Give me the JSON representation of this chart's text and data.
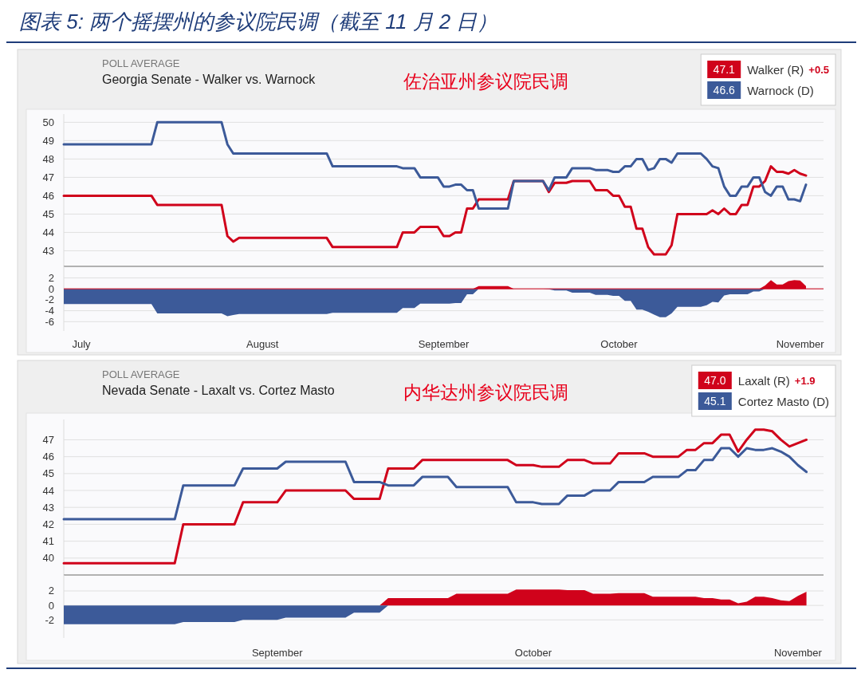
{
  "chart_data": [
    {
      "type": "line",
      "title": "Georgia Senate - Walker vs. Warnock",
      "subtitle": "佐治亚州参议院民调",
      "annotations": [
        "图表 5: 两个摇摆州的参议院民调（截至 11 月 2 日）",
        "POLL AVERAGE",
        "47.1",
        "+0.5",
        "46.6"
      ],
      "x": [
        "--06-28",
        "--07-13",
        "--07-14",
        "--07-25",
        "--07-26",
        "--07-27",
        "--07-28",
        "--08-12",
        "--08-13",
        "--08-24",
        "--08-25",
        "--08-27",
        "--08-28",
        "--08-29",
        "--08-31",
        "--09-01",
        "--09-02",
        "--09-03",
        "--09-04",
        "--09-05",
        "--09-06",
        "--09-07",
        "--09-12",
        "--09-13",
        "--09-18",
        "--09-19",
        "--09-20",
        "--09-22",
        "--09-23",
        "--09-26",
        "--09-27",
        "--09-29",
        "--09-30",
        "--10-01",
        "--10-02",
        "--10-03",
        "--10-04",
        "--10-05",
        "--10-06",
        "--10-07",
        "--10-08",
        "--10-09",
        "--10-10",
        "--10-11",
        "--10-15",
        "--10-16",
        "--10-17",
        "--10-18",
        "--10-19",
        "--10-20",
        "--10-21",
        "--10-22",
        "--10-23",
        "--10-24",
        "--10-25",
        "--10-26",
        "--10-27",
        "--10-28",
        "--10-29",
        "--10-30",
        "--10-31",
        "--11-01",
        "--11-02"
      ],
      "series": [
        {
          "name": "Walker (R)",
          "color": "#d0021b",
          "values": [
            46.0,
            46.0,
            45.5,
            45.5,
            43.8,
            43.5,
            43.7,
            43.7,
            43.2,
            43.2,
            44.0,
            44.0,
            44.3,
            44.3,
            44.3,
            43.8,
            43.8,
            44.0,
            44.0,
            45.3,
            45.3,
            45.8,
            45.8,
            46.8,
            46.8,
            46.2,
            46.7,
            46.7,
            46.8,
            46.8,
            46.3,
            46.3,
            46.0,
            46.0,
            45.4,
            45.4,
            44.2,
            44.2,
            43.2,
            42.8,
            42.8,
            42.8,
            43.3,
            45.0,
            45.0,
            45.0,
            45.2,
            45.0,
            45.3,
            45.0,
            45.0,
            45.5,
            45.5,
            46.5,
            46.5,
            46.8,
            47.6,
            47.3,
            47.3,
            47.2,
            47.4,
            47.2,
            47.1
          ]
        },
        {
          "name": "Warnock (D)",
          "color": "#3c5a99",
          "values": [
            48.8,
            48.8,
            50.0,
            50.0,
            48.8,
            48.3,
            48.3,
            48.3,
            47.6,
            47.6,
            47.5,
            47.5,
            47.0,
            47.0,
            47.0,
            46.5,
            46.5,
            46.6,
            46.6,
            46.3,
            46.3,
            45.3,
            45.3,
            46.8,
            46.8,
            46.3,
            47.0,
            47.0,
            47.5,
            47.5,
            47.4,
            47.4,
            47.3,
            47.3,
            47.6,
            47.6,
            48.0,
            48.0,
            47.4,
            47.5,
            48.0,
            48.0,
            47.8,
            48.3,
            48.3,
            48.0,
            47.6,
            47.5,
            46.5,
            46.0,
            46.0,
            46.5,
            46.5,
            47.0,
            47.0,
            46.2,
            46.0,
            46.5,
            46.5,
            45.8,
            45.8,
            45.7,
            46.6
          ]
        }
      ],
      "xlim": [
        "--06-28",
        "--11-05"
      ],
      "ylim": [
        42.15,
        50.45
      ],
      "yticks": [
        43,
        44,
        45,
        46,
        47,
        48,
        49,
        50
      ],
      "grid": "y",
      "legend": "top right",
      "tick_labels": "y"
    },
    {
      "type": "area",
      "x": [
        "--06-28",
        "--07-13",
        "--07-14",
        "--07-25",
        "--07-26",
        "--07-27",
        "--07-28",
        "--08-12",
        "--08-13",
        "--08-24",
        "--08-25",
        "--08-27",
        "--08-28",
        "--08-29",
        "--08-31",
        "--09-01",
        "--09-02",
        "--09-03",
        "--09-04",
        "--09-05",
        "--09-06",
        "--09-07",
        "--09-12",
        "--09-13",
        "--09-18",
        "--09-19",
        "--09-20",
        "--09-22",
        "--09-23",
        "--09-26",
        "--09-27",
        "--09-29",
        "--09-30",
        "--10-01",
        "--10-02",
        "--10-03",
        "--10-04",
        "--10-05",
        "--10-06",
        "--10-07",
        "--10-08",
        "--10-09",
        "--10-10",
        "--10-11",
        "--10-15",
        "--10-16",
        "--10-17",
        "--10-18",
        "--10-19",
        "--10-20",
        "--10-21",
        "--10-22",
        "--10-23",
        "--10-24",
        "--10-25",
        "--10-26",
        "--10-27",
        "--10-28",
        "--10-29",
        "--10-30",
        "--10-31",
        "--11-01",
        "--11-02"
      ],
      "series": [
        {
          "color": "#d0021b",
          "values": [
            0,
            0,
            0,
            0,
            0,
            0,
            0,
            0,
            0,
            0,
            0,
            0,
            0,
            0,
            0,
            0,
            0,
            0,
            0,
            0,
            0,
            0.5,
            0.5,
            0,
            0,
            0,
            0,
            0,
            0,
            0,
            0,
            0,
            0,
            0,
            0,
            0,
            0,
            0,
            0,
            0,
            0,
            0,
            0,
            0,
            0,
            0,
            0,
            0,
            0,
            0,
            0,
            0,
            0,
            0,
            0,
            0.6,
            1.6,
            0.8,
            0.8,
            1.4,
            1.6,
            1.5,
            0.5
          ]
        },
        {
          "color": "#3c5a99",
          "values": [
            -2.8,
            -2.8,
            -4.5,
            -4.5,
            -5.0,
            -4.8,
            -4.6,
            -4.6,
            -4.4,
            -4.4,
            -3.5,
            -3.5,
            -2.7,
            -2.7,
            -2.7,
            -2.7,
            -2.7,
            -2.6,
            -2.6,
            -1.0,
            -1.0,
            0,
            0,
            0,
            0,
            -0.1,
            -0.3,
            -0.3,
            -0.7,
            -0.7,
            -1.1,
            -1.1,
            -1.3,
            -1.3,
            -2.2,
            -2.2,
            -3.8,
            -3.8,
            -4.2,
            -4.7,
            -5.2,
            -5.2,
            -4.5,
            -3.3,
            -3.3,
            -3.0,
            -2.4,
            -2.5,
            -1.2,
            -1.0,
            -1.0,
            -1.0,
            -1.0,
            -0.5,
            -0.5,
            0,
            0,
            0,
            0,
            0,
            0,
            0,
            0
          ]
        }
      ],
      "xlim": [
        "--06-28",
        "--11-05"
      ],
      "xticks": [
        {
          "value": "--07-01",
          "label": "July"
        },
        {
          "value": "--08-01",
          "label": "August"
        },
        {
          "value": "--09-01",
          "label": "September"
        },
        {
          "value": "--10-01",
          "label": "October"
        },
        {
          "value": "--11-01",
          "label": "November"
        }
      ],
      "ylim": [
        -7.7,
        4.1
      ],
      "yticks": [
        2,
        0,
        -2,
        -4,
        -6
      ],
      "grid": "y",
      "ref_lines": [
        {
          "axis": "y",
          "value": 0,
          "color": "#d0021b"
        }
      ]
    },
    {
      "type": "line",
      "title": "Nevada Senate - Laxalt vs. Cortez Masto",
      "subtitle": "内华达州参议院民调",
      "annotations": [
        "POLL AVERAGE",
        "47.0",
        "+1.9",
        "45.1"
      ],
      "x": [
        "--08-07",
        "--08-20",
        "--08-21",
        "--08-27",
        "--08-28",
        "--09-01",
        "--09-02",
        "--09-09",
        "--09-10",
        "--09-13",
        "--09-14",
        "--09-17",
        "--09-18",
        "--09-19",
        "--09-21",
        "--09-22",
        "--09-28",
        "--09-29",
        "--10-01",
        "--10-02",
        "--10-04",
        "--10-05",
        "--10-07",
        "--10-08",
        "--10-10",
        "--10-11",
        "--10-14",
        "--10-15",
        "--10-18",
        "--10-19",
        "--10-20",
        "--10-21",
        "--10-22",
        "--10-23",
        "--10-24",
        "--10-25",
        "--10-26",
        "--10-27",
        "--10-28",
        "--10-29",
        "--10-30",
        "--10-31",
        "--11-01",
        "--11-02"
      ],
      "series": [
        {
          "name": "Laxalt (R)",
          "color": "#d0021b",
          "values": [
            39.7,
            39.7,
            42.0,
            42.0,
            43.3,
            43.3,
            44.0,
            44.0,
            43.5,
            43.5,
            45.3,
            45.3,
            45.8,
            45.8,
            45.8,
            45.8,
            45.8,
            45.5,
            45.5,
            45.4,
            45.4,
            45.8,
            45.8,
            45.6,
            45.6,
            46.2,
            46.2,
            46.0,
            46.0,
            46.4,
            46.4,
            46.8,
            46.8,
            47.3,
            47.3,
            46.3,
            47.0,
            47.6,
            47.6,
            47.5,
            47.0,
            46.6,
            46.8,
            47.0
          ]
        },
        {
          "name": "Cortez Masto (D)",
          "color": "#3c5a99",
          "values": [
            42.3,
            42.3,
            44.3,
            44.3,
            45.3,
            45.3,
            45.7,
            45.7,
            44.5,
            44.5,
            44.3,
            44.3,
            44.8,
            44.8,
            44.8,
            44.2,
            44.2,
            43.3,
            43.3,
            43.2,
            43.2,
            43.7,
            43.7,
            44.0,
            44.0,
            44.5,
            44.5,
            44.8,
            44.8,
            45.2,
            45.2,
            45.8,
            45.8,
            46.5,
            46.5,
            46.0,
            46.5,
            46.4,
            46.4,
            46.5,
            46.3,
            46.0,
            45.5,
            45.1
          ]
        }
      ],
      "xlim": [
        "--08-07",
        "--11-04"
      ],
      "ylim": [
        39.0,
        48.2
      ],
      "yticks": [
        40,
        41,
        42,
        43,
        44,
        45,
        46,
        47
      ],
      "grid": "y",
      "legend": "top right",
      "tick_labels": "y"
    },
    {
      "type": "area",
      "x": [
        "--08-07",
        "--08-20",
        "--08-21",
        "--08-27",
        "--08-28",
        "--09-01",
        "--09-02",
        "--09-09",
        "--09-10",
        "--09-13",
        "--09-14",
        "--09-17",
        "--09-18",
        "--09-19",
        "--09-21",
        "--09-22",
        "--09-28",
        "--09-29",
        "--10-01",
        "--10-02",
        "--10-04",
        "--10-05",
        "--10-07",
        "--10-08",
        "--10-10",
        "--10-11",
        "--10-14",
        "--10-15",
        "--10-18",
        "--10-19",
        "--10-20",
        "--10-21",
        "--10-22",
        "--10-23",
        "--10-24",
        "--10-25",
        "--10-26",
        "--10-27",
        "--10-28",
        "--10-29",
        "--10-30",
        "--10-31",
        "--11-01",
        "--11-02"
      ],
      "series": [
        {
          "color": "#d0021b",
          "values": [
            0,
            0,
            0,
            0,
            0,
            0,
            0,
            0,
            0,
            0,
            1.0,
            1.0,
            1.0,
            1.0,
            1.0,
            1.6,
            1.6,
            2.2,
            2.2,
            2.2,
            2.2,
            2.1,
            2.1,
            1.6,
            1.6,
            1.7,
            1.7,
            1.2,
            1.2,
            1.2,
            1.2,
            1.0,
            1.0,
            0.8,
            0.8,
            0.3,
            0.5,
            1.2,
            1.2,
            1.0,
            0.7,
            0.6,
            1.3,
            1.9
          ]
        },
        {
          "color": "#3c5a99",
          "values": [
            -2.6,
            -2.6,
            -2.3,
            -2.3,
            -2.0,
            -2.0,
            -1.7,
            -1.7,
            -1.0,
            -1.0,
            0,
            0,
            0,
            0,
            0,
            0,
            0,
            0,
            0,
            0,
            0,
            0,
            0,
            0,
            0,
            0,
            0,
            0,
            0,
            0,
            0,
            0,
            0,
            0,
            0,
            0,
            0,
            0,
            0,
            0,
            0,
            0,
            0,
            0
          ]
        }
      ],
      "xlim": [
        "--08-07",
        "--11-04"
      ],
      "xticks": [
        {
          "value": "--09-01",
          "label": "September"
        },
        {
          "value": "--10-01",
          "label": "October"
        },
        {
          "value": "--11-01",
          "label": "November"
        }
      ],
      "ylim": [
        -4.5,
        4.2
      ],
      "yticks": [
        2,
        0,
        -2
      ],
      "grid": "y"
    }
  ]
}
